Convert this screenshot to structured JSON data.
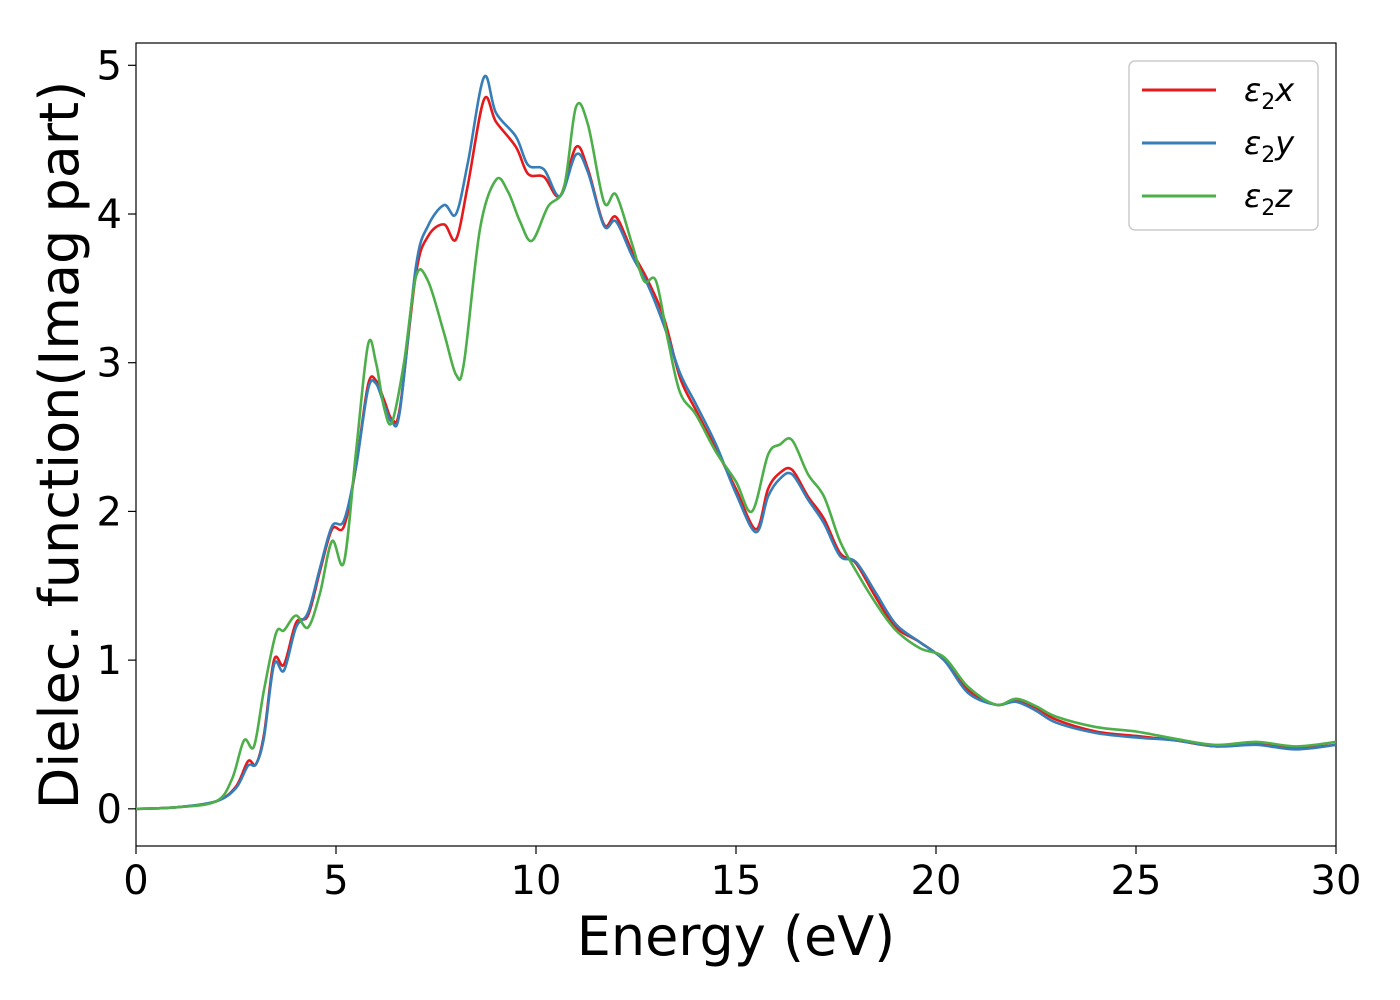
{
  "chart_data": {
    "type": "line",
    "title": "",
    "xlabel": "Energy (eV)",
    "ylabel": "Dielec. function(Imag part)",
    "xlim": [
      0,
      30
    ],
    "ylim": [
      -0.25,
      5.15
    ],
    "xticks": [
      0,
      5,
      10,
      15,
      20,
      25,
      30
    ],
    "yticks": [
      0,
      1,
      2,
      3,
      4,
      5
    ],
    "grid": false,
    "legend_position": "top-right",
    "series": [
      {
        "name": "ε₂x",
        "legend_main": "ε",
        "legend_sub": "2",
        "legend_tail": "x",
        "color": "#e41a1c",
        "points": [
          [
            0,
            0
          ],
          [
            1,
            0.01
          ],
          [
            2,
            0.05
          ],
          [
            2.5,
            0.15
          ],
          [
            2.8,
            0.32
          ],
          [
            3.0,
            0.3
          ],
          [
            3.2,
            0.5
          ],
          [
            3.45,
            1.0
          ],
          [
            3.7,
            0.97
          ],
          [
            4.0,
            1.25
          ],
          [
            4.3,
            1.3
          ],
          [
            4.6,
            1.6
          ],
          [
            4.9,
            1.88
          ],
          [
            5.2,
            1.9
          ],
          [
            5.5,
            2.3
          ],
          [
            5.8,
            2.85
          ],
          [
            6.0,
            2.88
          ],
          [
            6.2,
            2.75
          ],
          [
            6.4,
            2.62
          ],
          [
            6.6,
            2.7
          ],
          [
            7.0,
            3.6
          ],
          [
            7.3,
            3.85
          ],
          [
            7.7,
            3.93
          ],
          [
            8.0,
            3.83
          ],
          [
            8.3,
            4.2
          ],
          [
            8.7,
            4.77
          ],
          [
            9.0,
            4.62
          ],
          [
            9.5,
            4.45
          ],
          [
            9.8,
            4.27
          ],
          [
            10.2,
            4.25
          ],
          [
            10.6,
            4.12
          ],
          [
            11.0,
            4.45
          ],
          [
            11.3,
            4.3
          ],
          [
            11.7,
            3.93
          ],
          [
            12.0,
            3.98
          ],
          [
            12.4,
            3.75
          ],
          [
            12.8,
            3.55
          ],
          [
            13.2,
            3.3
          ],
          [
            13.6,
            2.9
          ],
          [
            14.0,
            2.68
          ],
          [
            14.5,
            2.42
          ],
          [
            15.0,
            2.15
          ],
          [
            15.5,
            1.88
          ],
          [
            15.8,
            2.15
          ],
          [
            16.1,
            2.26
          ],
          [
            16.4,
            2.28
          ],
          [
            16.8,
            2.1
          ],
          [
            17.2,
            1.95
          ],
          [
            17.6,
            1.72
          ],
          [
            18.0,
            1.65
          ],
          [
            18.5,
            1.42
          ],
          [
            19.0,
            1.22
          ],
          [
            19.6,
            1.12
          ],
          [
            20.2,
            1.0
          ],
          [
            20.8,
            0.8
          ],
          [
            21.5,
            0.7
          ],
          [
            22.0,
            0.73
          ],
          [
            22.5,
            0.68
          ],
          [
            23.0,
            0.6
          ],
          [
            24.0,
            0.52
          ],
          [
            25.0,
            0.49
          ],
          [
            26.0,
            0.46
          ],
          [
            27.0,
            0.42
          ],
          [
            28.0,
            0.44
          ],
          [
            29.0,
            0.41
          ],
          [
            30.0,
            0.43
          ]
        ]
      },
      {
        "name": "ε₂y",
        "legend_main": "ε",
        "legend_sub": "2",
        "legend_tail": "y",
        "color": "#377eb8",
        "points": [
          [
            0,
            0
          ],
          [
            1,
            0.01
          ],
          [
            2,
            0.05
          ],
          [
            2.5,
            0.14
          ],
          [
            2.8,
            0.29
          ],
          [
            3.0,
            0.3
          ],
          [
            3.2,
            0.48
          ],
          [
            3.45,
            0.97
          ],
          [
            3.7,
            0.93
          ],
          [
            4.0,
            1.22
          ],
          [
            4.3,
            1.32
          ],
          [
            4.6,
            1.62
          ],
          [
            4.9,
            1.9
          ],
          [
            5.2,
            1.94
          ],
          [
            5.5,
            2.3
          ],
          [
            5.8,
            2.82
          ],
          [
            6.0,
            2.86
          ],
          [
            6.2,
            2.72
          ],
          [
            6.4,
            2.6
          ],
          [
            6.6,
            2.68
          ],
          [
            7.0,
            3.65
          ],
          [
            7.3,
            3.92
          ],
          [
            7.7,
            4.06
          ],
          [
            8.0,
            4.0
          ],
          [
            8.3,
            4.35
          ],
          [
            8.7,
            4.92
          ],
          [
            9.0,
            4.68
          ],
          [
            9.5,
            4.52
          ],
          [
            9.8,
            4.33
          ],
          [
            10.2,
            4.3
          ],
          [
            10.6,
            4.12
          ],
          [
            11.0,
            4.4
          ],
          [
            11.3,
            4.28
          ],
          [
            11.7,
            3.92
          ],
          [
            12.0,
            3.95
          ],
          [
            12.4,
            3.72
          ],
          [
            12.8,
            3.52
          ],
          [
            13.2,
            3.25
          ],
          [
            13.6,
            2.93
          ],
          [
            14.0,
            2.72
          ],
          [
            14.5,
            2.45
          ],
          [
            15.0,
            2.12
          ],
          [
            15.5,
            1.86
          ],
          [
            15.8,
            2.1
          ],
          [
            16.1,
            2.22
          ],
          [
            16.4,
            2.25
          ],
          [
            16.8,
            2.08
          ],
          [
            17.2,
            1.92
          ],
          [
            17.6,
            1.7
          ],
          [
            18.0,
            1.66
          ],
          [
            18.5,
            1.45
          ],
          [
            19.0,
            1.24
          ],
          [
            19.6,
            1.12
          ],
          [
            20.2,
            1.0
          ],
          [
            20.8,
            0.78
          ],
          [
            21.5,
            0.7
          ],
          [
            22.0,
            0.72
          ],
          [
            22.5,
            0.66
          ],
          [
            23.0,
            0.58
          ],
          [
            24.0,
            0.51
          ],
          [
            25.0,
            0.48
          ],
          [
            26.0,
            0.46
          ],
          [
            27.0,
            0.42
          ],
          [
            28.0,
            0.43
          ],
          [
            29.0,
            0.4
          ],
          [
            30.0,
            0.43
          ]
        ]
      },
      {
        "name": "ε₂z",
        "legend_main": "ε",
        "legend_sub": "2",
        "legend_tail": "z",
        "color": "#4daf4a",
        "points": [
          [
            0,
            0
          ],
          [
            1,
            0.01
          ],
          [
            2,
            0.05
          ],
          [
            2.4,
            0.2
          ],
          [
            2.7,
            0.46
          ],
          [
            2.95,
            0.42
          ],
          [
            3.2,
            0.8
          ],
          [
            3.5,
            1.18
          ],
          [
            3.7,
            1.2
          ],
          [
            4.0,
            1.3
          ],
          [
            4.3,
            1.22
          ],
          [
            4.6,
            1.45
          ],
          [
            4.9,
            1.8
          ],
          [
            5.2,
            1.66
          ],
          [
            5.5,
            2.4
          ],
          [
            5.8,
            3.12
          ],
          [
            6.0,
            3.0
          ],
          [
            6.2,
            2.7
          ],
          [
            6.4,
            2.6
          ],
          [
            6.7,
            3.0
          ],
          [
            7.0,
            3.58
          ],
          [
            7.3,
            3.55
          ],
          [
            7.7,
            3.2
          ],
          [
            8.0,
            2.92
          ],
          [
            8.2,
            3.0
          ],
          [
            8.6,
            3.9
          ],
          [
            9.0,
            4.23
          ],
          [
            9.3,
            4.15
          ],
          [
            9.6,
            3.95
          ],
          [
            9.9,
            3.82
          ],
          [
            10.3,
            4.05
          ],
          [
            10.7,
            4.18
          ],
          [
            11.0,
            4.72
          ],
          [
            11.3,
            4.6
          ],
          [
            11.7,
            4.08
          ],
          [
            12.0,
            4.13
          ],
          [
            12.4,
            3.8
          ],
          [
            12.7,
            3.55
          ],
          [
            13.0,
            3.55
          ],
          [
            13.3,
            3.15
          ],
          [
            13.6,
            2.8
          ],
          [
            14.0,
            2.65
          ],
          [
            14.5,
            2.4
          ],
          [
            15.0,
            2.2
          ],
          [
            15.4,
            2.0
          ],
          [
            15.8,
            2.38
          ],
          [
            16.1,
            2.45
          ],
          [
            16.4,
            2.48
          ],
          [
            16.8,
            2.25
          ],
          [
            17.2,
            2.1
          ],
          [
            17.6,
            1.8
          ],
          [
            18.0,
            1.6
          ],
          [
            18.5,
            1.38
          ],
          [
            19.0,
            1.2
          ],
          [
            19.6,
            1.08
          ],
          [
            20.2,
            1.02
          ],
          [
            20.8,
            0.82
          ],
          [
            21.5,
            0.7
          ],
          [
            22.0,
            0.74
          ],
          [
            22.5,
            0.69
          ],
          [
            23.0,
            0.62
          ],
          [
            24.0,
            0.55
          ],
          [
            25.0,
            0.52
          ],
          [
            26.0,
            0.47
          ],
          [
            27.0,
            0.43
          ],
          [
            28.0,
            0.45
          ],
          [
            29.0,
            0.42
          ],
          [
            30.0,
            0.45
          ]
        ]
      }
    ]
  }
}
